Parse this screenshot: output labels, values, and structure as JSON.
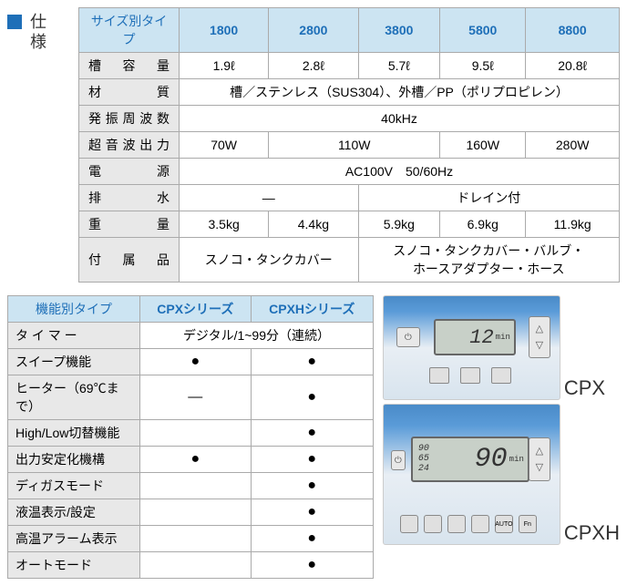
{
  "spec": {
    "title": "仕様",
    "headers": [
      "サイズ別タイプ",
      "1800",
      "2800",
      "3800",
      "5800",
      "8800"
    ],
    "rows": [
      {
        "label": "槽 容 量",
        "cells": [
          "1.9ℓ",
          "2.8ℓ",
          "5.7ℓ",
          "9.5ℓ",
          "20.8ℓ"
        ]
      },
      {
        "label": "材　　質",
        "merged": "槽／ステンレス（SUS304）、外槽／PP（ポリプロピレン）"
      },
      {
        "label": "発振周波数",
        "merged": "40kHz"
      },
      {
        "label": "超音波出力",
        "spans": [
          {
            "text": "70W",
            "cols": 1
          },
          {
            "text": "110W",
            "cols": 2
          },
          {
            "text": "160W",
            "cols": 1
          },
          {
            "text": "280W",
            "cols": 1
          }
        ]
      },
      {
        "label": "電　　源",
        "merged": "AC100V　50/60Hz"
      },
      {
        "label": "排　　水",
        "spans": [
          {
            "text": "—",
            "cols": 2
          },
          {
            "text": "ドレイン付",
            "cols": 3
          }
        ]
      },
      {
        "label": "重　　量",
        "cells": [
          "3.5kg",
          "4.4kg",
          "5.9kg",
          "6.9kg",
          "11.9kg"
        ]
      },
      {
        "label": "付 属 品",
        "spans": [
          {
            "text": "スノコ・タンクカバー",
            "cols": 2
          },
          {
            "text": "スノコ・タンクカバー・バルブ・\nホースアダプター・ホース",
            "cols": 3
          }
        ]
      }
    ]
  },
  "func": {
    "headers": [
      "機能別タイプ",
      "CPXシリーズ",
      "CPXHシリーズ"
    ],
    "rows": [
      {
        "label": "タ イ マ ー",
        "merged": "デジタル/1~99分（連続）"
      },
      {
        "label": "スイープ機能",
        "cells": [
          "●",
          "●"
        ]
      },
      {
        "label": "ヒーター（69℃まで）",
        "cells": [
          "—",
          "●"
        ]
      },
      {
        "label": "High/Low切替機能",
        "cells": [
          "",
          "●"
        ]
      },
      {
        "label": "出力安定化機構",
        "cells": [
          "●",
          "●"
        ]
      },
      {
        "label": "ディガスモード",
        "cells": [
          "",
          "●"
        ]
      },
      {
        "label": "液温表示/設定",
        "cells": [
          "",
          "●"
        ]
      },
      {
        "label": "高温アラーム表示",
        "cells": [
          "",
          "●"
        ]
      },
      {
        "label": "オートモード",
        "cells": [
          "",
          "●"
        ]
      }
    ]
  },
  "panels": {
    "cpx": {
      "label": "CPX",
      "display": "12",
      "unit": "min"
    },
    "cpxh": {
      "label": "CPXH",
      "display": "90",
      "unit": "min",
      "sub1": "90",
      "sub2": "65",
      "sub3": "24",
      "buttons": [
        "",
        "",
        "",
        "",
        "AUTO",
        "Fn"
      ]
    }
  }
}
